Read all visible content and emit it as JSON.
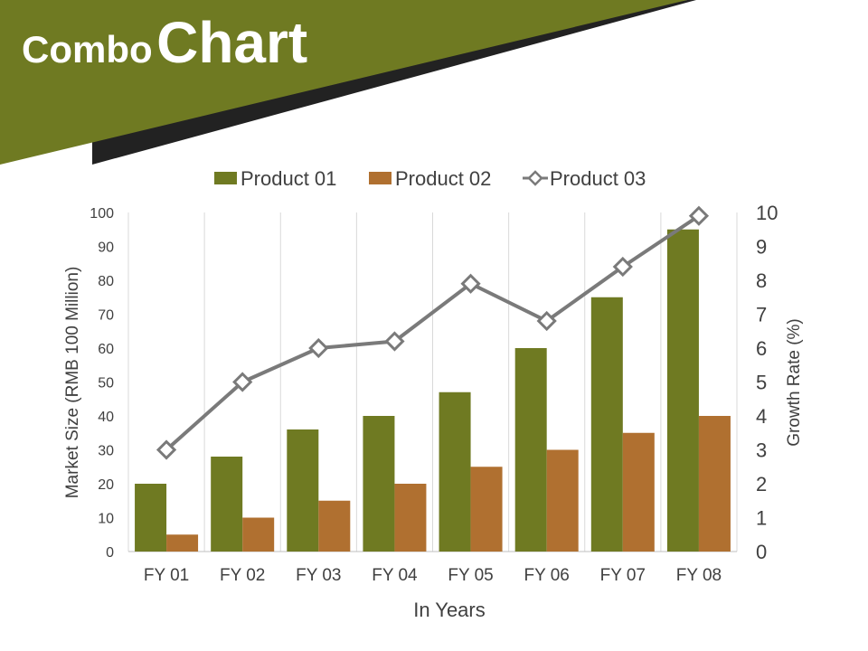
{
  "slide": {
    "title_part1": "Combo",
    "title_part2": "Chart"
  },
  "colors": {
    "banner_olive": "#6f7a22",
    "banner_dark": "#222222",
    "product_01": "#6f7a22",
    "product_02": "#b07030",
    "product_03": "#7a7a7a"
  },
  "chart_data": {
    "type": "bar",
    "combo": "bar+line",
    "categories": [
      "FY 01",
      "FY 02",
      "FY 03",
      "FY 04",
      "FY 05",
      "FY 06",
      "FY 07",
      "FY 08"
    ],
    "series": [
      {
        "name": "Product 01",
        "type": "bar",
        "axis": "left",
        "values": [
          20,
          28,
          36,
          40,
          47,
          60,
          75,
          95
        ]
      },
      {
        "name": "Product 02",
        "type": "bar",
        "axis": "left",
        "values": [
          5,
          10,
          15,
          20,
          25,
          30,
          35,
          40
        ]
      },
      {
        "name": "Product 03",
        "type": "line",
        "axis": "right",
        "marker": "diamond",
        "values": [
          3.0,
          5.0,
          6.0,
          6.2,
          7.9,
          6.8,
          8.4,
          9.9
        ]
      }
    ],
    "xlabel": "In Years",
    "ylabel": "Market Size (RMB 100 Million)",
    "y2label": "Growth Rate (%)",
    "ylim": [
      0,
      100
    ],
    "y2lim": [
      0,
      10
    ],
    "yticks": [
      "0",
      "10",
      "20",
      "30",
      "40",
      "50",
      "60",
      "70",
      "80",
      "90",
      "100"
    ],
    "y2ticks": [
      "0",
      "1",
      "2",
      "3",
      "4",
      "5",
      "6",
      "7",
      "8",
      "9",
      "10"
    ],
    "grid": "vertical",
    "legend": "top"
  }
}
